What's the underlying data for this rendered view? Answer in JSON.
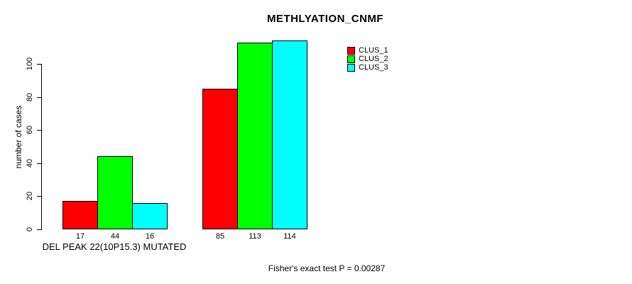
{
  "chart_data": {
    "type": "bar",
    "title": "METHLYATION_CNMF",
    "ylabel": "number of cases",
    "group_label": "DEL PEAK 22(10P15.3) MUTATED",
    "categories": [
      "DEL PEAK 22(10P15.3) MUTATED",
      ""
    ],
    "series": [
      {
        "name": "CLUS_1",
        "color": "#ff0000",
        "values": [
          17,
          85
        ]
      },
      {
        "name": "CLUS_2",
        "color": "#00ff00",
        "values": [
          44,
          113
        ]
      },
      {
        "name": "CLUS_3",
        "color": "#00ffff",
        "values": [
          16,
          114
        ]
      }
    ],
    "yticks": [
      0,
      20,
      40,
      60,
      80,
      100
    ],
    "ylim": [
      0,
      117
    ],
    "grid": false,
    "legend_position": "top-right",
    "annotation": "Fisher's exact test P = 0.00287",
    "colors": {
      "background": "#ffffff",
      "axis": "#000000",
      "text": "#000000"
    }
  }
}
